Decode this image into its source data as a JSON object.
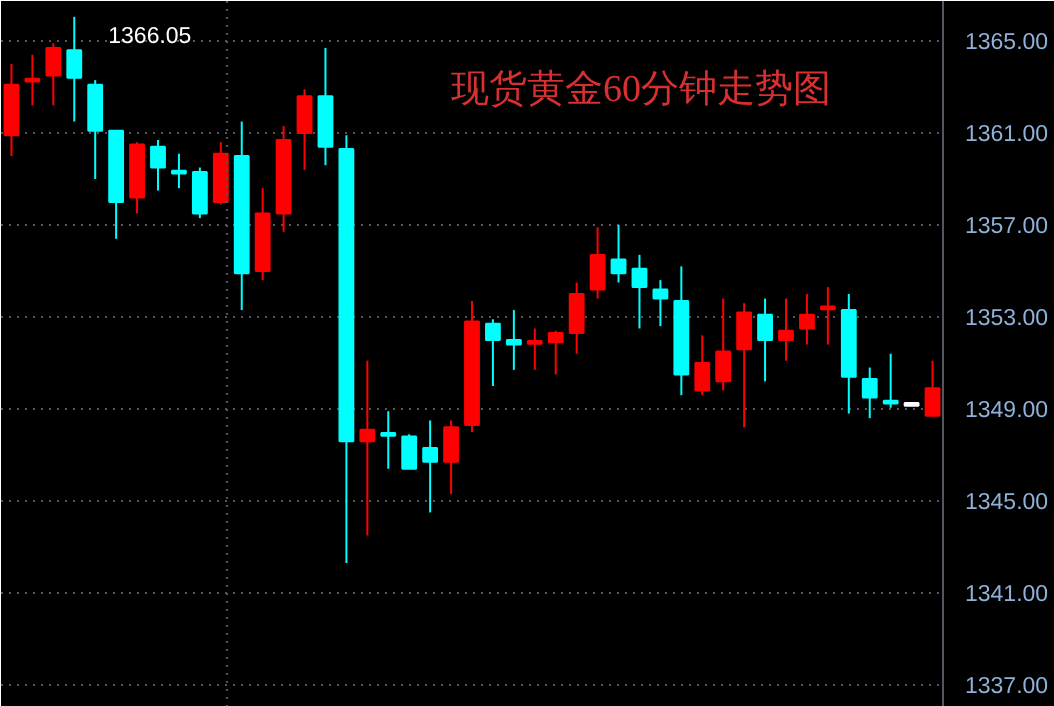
{
  "chart_data": {
    "type": "candlestick",
    "title": "现货黄金60分钟走势图",
    "categories": [
      null,
      null,
      null,
      null,
      null,
      null,
      null,
      null,
      null,
      null,
      null,
      null,
      null,
      null,
      null,
      null,
      null,
      null,
      null,
      null,
      null,
      null,
      null,
      null,
      null,
      null,
      null,
      null,
      null,
      null,
      null,
      null,
      null,
      null,
      null,
      null,
      null,
      null,
      null,
      null,
      null,
      null,
      null,
      null,
      null
    ],
    "ohlc": [
      [
        1360.9,
        1364.0,
        1360.0,
        1363.1
      ],
      [
        1363.2,
        1364.4,
        1362.2,
        1363.3
      ],
      [
        1363.5,
        1364.9,
        1362.2,
        1364.7
      ],
      [
        1364.6,
        1366.05,
        1361.5,
        1363.4
      ],
      [
        1363.1,
        1363.3,
        1359.0,
        1361.1
      ],
      [
        1361.1,
        1361.1,
        1356.4,
        1358.0
      ],
      [
        1358.2,
        1360.6,
        1357.5,
        1360.5
      ],
      [
        1360.4,
        1360.7,
        1358.5,
        1359.5
      ],
      [
        1359.4,
        1360.1,
        1358.6,
        1359.3
      ],
      [
        1359.3,
        1359.5,
        1357.3,
        1357.5
      ],
      [
        1358.0,
        1360.6,
        1357.9,
        1360.1
      ],
      [
        1360.0,
        1361.5,
        1353.3,
        1354.9
      ],
      [
        1355.0,
        1358.6,
        1354.6,
        1357.5
      ],
      [
        1357.5,
        1361.3,
        1356.7,
        1360.7
      ],
      [
        1361.0,
        1362.9,
        1359.4,
        1362.6
      ],
      [
        1362.6,
        1364.7,
        1359.6,
        1360.4
      ],
      [
        1360.3,
        1360.9,
        1342.3,
        1347.6
      ],
      [
        1347.6,
        1351.1,
        1343.5,
        1348.1
      ],
      [
        1348.0,
        1348.9,
        1346.4,
        1347.9
      ],
      [
        1347.8,
        1347.9,
        1346.4,
        1346.4
      ],
      [
        1347.3,
        1348.5,
        1344.5,
        1346.7
      ],
      [
        1346.7,
        1348.5,
        1345.3,
        1348.2
      ],
      [
        1348.3,
        1353.7,
        1348.0,
        1352.8
      ],
      [
        1352.7,
        1352.9,
        1350.0,
        1352.0
      ],
      [
        1352.0,
        1353.3,
        1350.7,
        1351.8
      ],
      [
        1351.8,
        1352.5,
        1350.7,
        1351.9
      ],
      [
        1351.9,
        1352.4,
        1350.5,
        1352.3
      ],
      [
        1352.3,
        1354.5,
        1351.4,
        1354.0
      ],
      [
        1354.2,
        1356.9,
        1353.8,
        1355.7
      ],
      [
        1355.5,
        1357.0,
        1354.5,
        1354.9
      ],
      [
        1355.1,
        1355.7,
        1352.5,
        1354.3
      ],
      [
        1354.2,
        1354.6,
        1352.6,
        1353.8
      ],
      [
        1353.7,
        1355.2,
        1349.6,
        1350.5
      ],
      [
        1349.8,
        1352.2,
        1349.6,
        1351.0
      ],
      [
        1350.2,
        1353.8,
        1349.8,
        1351.5
      ],
      [
        1351.6,
        1353.6,
        1348.2,
        1353.2
      ],
      [
        1353.1,
        1353.8,
        1350.2,
        1352.0
      ],
      [
        1352.0,
        1353.8,
        1351.1,
        1352.4
      ],
      [
        1352.5,
        1354.0,
        1351.8,
        1353.1
      ],
      [
        1353.3,
        1354.3,
        1351.8,
        1353.4
      ],
      [
        1353.3,
        1354.0,
        1348.8,
        1350.4
      ],
      [
        1350.3,
        1350.8,
        1348.6,
        1349.5
      ],
      [
        1349.4,
        1351.4,
        1349.05,
        1349.3
      ],
      [
        1349.2,
        1349.2,
        1349.2,
        1349.2
      ],
      [
        1348.7,
        1351.1,
        1348.7,
        1349.9
      ]
    ],
    "colors": [
      "#ff0000",
      "#ff0000",
      "#ff0000",
      "#00ffff",
      "#00ffff",
      "#00ffff",
      "#ff0000",
      "#00ffff",
      "#00ffff",
      "#00ffff",
      "#ff0000",
      "#00ffff",
      "#ff0000",
      "#ff0000",
      "#ff0000",
      "#00ffff",
      "#00ffff",
      "#ff0000",
      "#00ffff",
      "#00ffff",
      "#00ffff",
      "#ff0000",
      "#ff0000",
      "#00ffff",
      "#00ffff",
      "#ff0000",
      "#ff0000",
      "#ff0000",
      "#ff0000",
      "#00ffff",
      "#00ffff",
      "#00ffff",
      "#00ffff",
      "#ff0000",
      "#ff0000",
      "#ff0000",
      "#00ffff",
      "#ff0000",
      "#ff0000",
      "#ff0000",
      "#00ffff",
      "#00ffff",
      "#00ffff",
      "#ffffff",
      "#ff0000"
    ],
    "ylim": [
      1336.04,
      1366.74
    ],
    "yticks": [
      {
        "value": 1337,
        "label": "1337.00"
      },
      {
        "value": 1341,
        "label": "1341.00"
      },
      {
        "value": 1345,
        "label": "1345.00"
      },
      {
        "value": 1349,
        "label": "1349.00"
      },
      {
        "value": 1353,
        "label": "1353.00"
      },
      {
        "value": 1357,
        "label": "1357.00"
      },
      {
        "value": 1361,
        "label": "1361.00"
      },
      {
        "value": 1365,
        "label": "1365.00"
      }
    ],
    "grid": "y",
    "tick_labels": "y",
    "annotations": [
      "1366.05"
    ]
  }
}
